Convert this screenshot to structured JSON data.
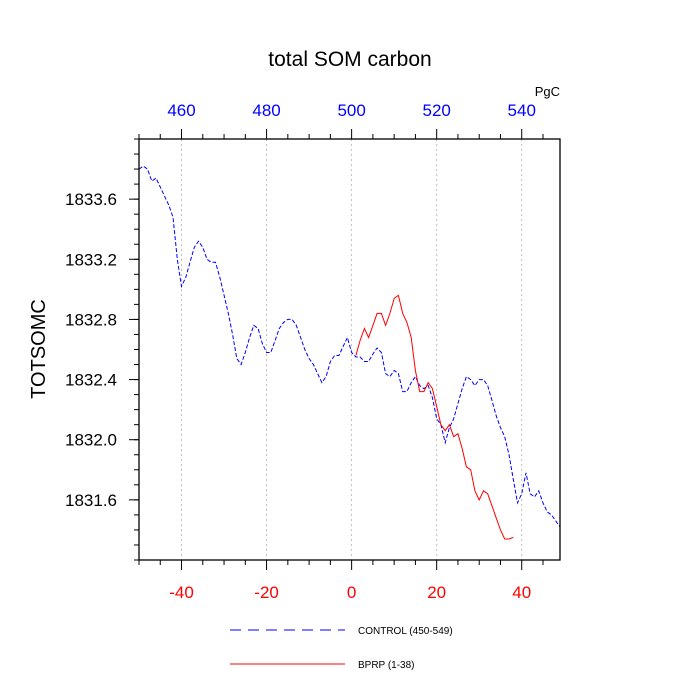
{
  "chart_data": {
    "type": "line",
    "title": "total SOM carbon",
    "ylabel": "TOTSOMC",
    "top_axis_unit": "PgC",
    "xlim": [
      -50,
      49
    ],
    "ylim": [
      1831.2,
      1834.0
    ],
    "grid": "vertical dotted at top-axis ticks",
    "bottom_ticks": [
      {
        "value": -40,
        "label": "-40"
      },
      {
        "value": -20,
        "label": "-20"
      },
      {
        "value": 0,
        "label": "0"
      },
      {
        "value": 20,
        "label": "20"
      },
      {
        "value": 40,
        "label": "40"
      }
    ],
    "top_ticks": [
      {
        "value": -40,
        "label": "460"
      },
      {
        "value": -20,
        "label": "480"
      },
      {
        "value": 0,
        "label": "500"
      },
      {
        "value": 20,
        "label": "520"
      },
      {
        "value": 40,
        "label": "540"
      }
    ],
    "y_ticks": [
      {
        "value": 1831.6,
        "label": "1831.6"
      },
      {
        "value": 1832.0,
        "label": "1832.0"
      },
      {
        "value": 1832.4,
        "label": "1832.4"
      },
      {
        "value": 1832.8,
        "label": "1832.8"
      },
      {
        "value": 1833.2,
        "label": "1833.2"
      },
      {
        "value": 1833.6,
        "label": "1833.6"
      }
    ],
    "colors": {
      "bottom_axis": "#ff0000",
      "top_axis": "#0000ff"
    },
    "series": [
      {
        "name": "CONTROL (450-549)",
        "color": "#0000ff",
        "dash": "dashed",
        "x": [
          -50,
          -49,
          -48,
          -47,
          -46,
          -45,
          -44,
          -43,
          -42,
          -41,
          -40,
          -39,
          -38,
          -37,
          -36,
          -35,
          -34,
          -33,
          -32,
          -31,
          -30,
          -29,
          -28,
          -27,
          -26,
          -25,
          -24,
          -23,
          -22,
          -21,
          -20,
          -19,
          -18,
          -17,
          -16,
          -15,
          -14,
          -13,
          -12,
          -11,
          -10,
          -9,
          -8,
          -7,
          -6,
          -5,
          -4,
          -3,
          -2,
          -1,
          0,
          1,
          2,
          3,
          4,
          5,
          6,
          7,
          8,
          9,
          10,
          11,
          12,
          13,
          14,
          15,
          16,
          17,
          18,
          19,
          20,
          21,
          22,
          23,
          24,
          25,
          26,
          27,
          28,
          29,
          30,
          31,
          32,
          33,
          34,
          35,
          36,
          37,
          38,
          39,
          40,
          41,
          42,
          43,
          44,
          45,
          46,
          47,
          48,
          49
        ],
        "values": [
          1833.8,
          1833.82,
          1833.8,
          1833.72,
          1833.74,
          1833.68,
          1833.62,
          1833.56,
          1833.48,
          1833.2,
          1833.02,
          1833.08,
          1833.18,
          1833.28,
          1833.32,
          1833.28,
          1833.2,
          1833.18,
          1833.18,
          1833.08,
          1832.96,
          1832.84,
          1832.7,
          1832.54,
          1832.5,
          1832.58,
          1832.68,
          1832.76,
          1832.74,
          1832.64,
          1832.58,
          1832.58,
          1832.66,
          1832.74,
          1832.78,
          1832.8,
          1832.8,
          1832.76,
          1832.68,
          1832.6,
          1832.54,
          1832.5,
          1832.44,
          1832.38,
          1832.42,
          1832.52,
          1832.56,
          1832.56,
          1832.62,
          1832.68,
          1832.58,
          1832.55,
          1832.55,
          1832.52,
          1832.52,
          1832.57,
          1832.61,
          1832.58,
          1832.44,
          1832.42,
          1832.46,
          1832.44,
          1832.32,
          1832.32,
          1832.38,
          1832.42,
          1832.36,
          1832.34,
          1832.36,
          1832.28,
          1832.14,
          1832.1,
          1831.98,
          1832.08,
          1832.14,
          1832.24,
          1832.34,
          1832.42,
          1832.4,
          1832.36,
          1832.4,
          1832.4,
          1832.36,
          1832.26,
          1832.16,
          1832.08,
          1832.02,
          1831.9,
          1831.74,
          1831.58,
          1831.64,
          1831.78,
          1831.64,
          1831.62,
          1831.66,
          1831.58,
          1831.52,
          1831.5,
          1831.46,
          1831.42
        ]
      },
      {
        "name": "BPRP (1-38)",
        "color": "#ff0000",
        "dash": "solid",
        "x": [
          1,
          2,
          3,
          4,
          5,
          6,
          7,
          8,
          9,
          10,
          11,
          12,
          13,
          14,
          15,
          16,
          17,
          18,
          19,
          20,
          21,
          22,
          23,
          24,
          25,
          26,
          27,
          28,
          29,
          30,
          31,
          32,
          33,
          34,
          35,
          36,
          37,
          38
        ],
        "values": [
          1832.56,
          1832.66,
          1832.74,
          1832.68,
          1832.76,
          1832.84,
          1832.84,
          1832.76,
          1832.84,
          1832.94,
          1832.96,
          1832.84,
          1832.78,
          1832.68,
          1832.46,
          1832.32,
          1832.32,
          1832.38,
          1832.34,
          1832.22,
          1832.1,
          1832.06,
          1832.1,
          1832.02,
          1832.04,
          1831.94,
          1831.82,
          1831.8,
          1831.66,
          1831.6,
          1831.66,
          1831.64,
          1831.56,
          1831.48,
          1831.4,
          1831.34,
          1831.34,
          1831.35
        ]
      }
    ]
  }
}
